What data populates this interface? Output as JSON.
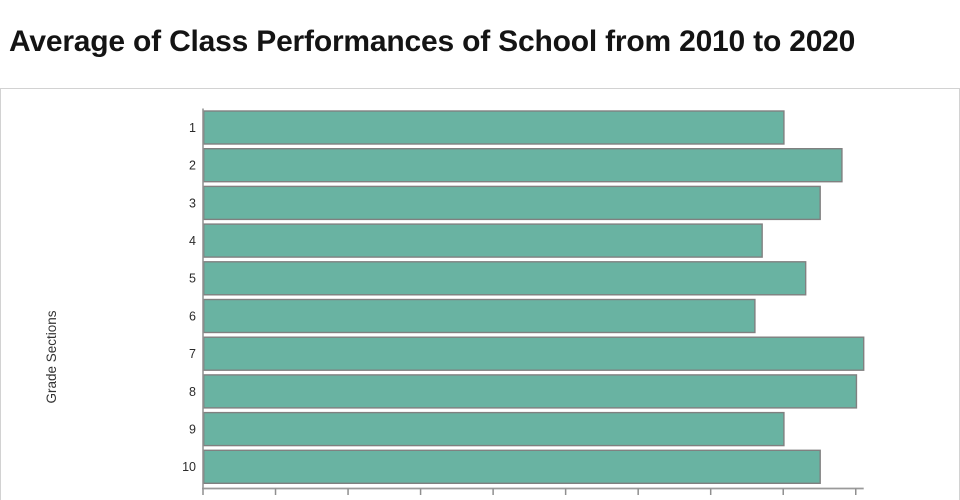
{
  "title": "Average of Class Performances of School from 2010 to 2020",
  "chart_data": {
    "type": "bar",
    "orientation": "horizontal",
    "title": "Average of Class Performances of School from 2010 to 2020",
    "xlabel": "",
    "ylabel": "Grade Sections",
    "categories": [
      "1",
      "2",
      "3",
      "4",
      "5",
      "6",
      "7",
      "8",
      "9",
      "10"
    ],
    "values": [
      80,
      88,
      85,
      77,
      83,
      76,
      91,
      90,
      80,
      85
    ],
    "xlim": [
      0,
      91
    ],
    "xticks": [
      0,
      10,
      20,
      30,
      40,
      50,
      60,
      70,
      80,
      90
    ],
    "xtick_labels_visible": false,
    "grid": false,
    "legend": false,
    "colors": {
      "bar_fill": "#69b3a2",
      "bar_stroke": "#808080",
      "axis": "#9a9a9a",
      "tick": "#8f8f8f",
      "tick_label": "#2b2b2b",
      "axis_title": "#333333",
      "title": "#141414"
    }
  }
}
